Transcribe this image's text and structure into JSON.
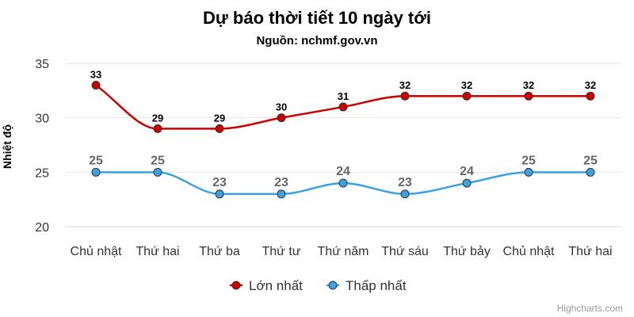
{
  "chart_data": {
    "type": "line",
    "title": "Dự báo thời tiết 10 ngày tới",
    "subtitle": "Nguồn: nchmf.gov.vn",
    "ylabel": "Nhiệt độ",
    "xlabel": "",
    "categories": [
      "Chủ nhật",
      "Thứ hai",
      "Thứ ba",
      "Thứ tư",
      "Thứ năm",
      "Thứ sáu",
      "Thứ bảy",
      "Chủ nhật",
      "Thứ hai"
    ],
    "ylim": [
      20,
      35
    ],
    "yticks": [
      20,
      25,
      30,
      35
    ],
    "grid": true,
    "legend_position": "bottom-center",
    "series": [
      {
        "name": "Lớn nhất",
        "color": "#cc0000",
        "values": [
          33,
          29,
          29,
          30,
          31,
          32,
          32,
          32,
          32
        ]
      },
      {
        "name": "Thấp nhất",
        "color": "#3ba1e0",
        "values": [
          25,
          25,
          23,
          23,
          24,
          23,
          24,
          25,
          25
        ]
      }
    ],
    "credit": "Highcharts.com"
  }
}
